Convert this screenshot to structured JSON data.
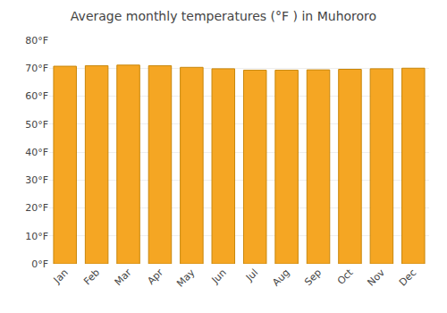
{
  "chart_data": {
    "type": "bar",
    "title": "Average monthly temperatures (°F ) in Muhororo",
    "categories": [
      "Jan",
      "Feb",
      "Mar",
      "Apr",
      "May",
      "Jun",
      "Jul",
      "Aug",
      "Sep",
      "Oct",
      "Nov",
      "Dec"
    ],
    "values": [
      70.7,
      70.9,
      71.1,
      70.9,
      70.3,
      69.8,
      69.3,
      69.3,
      69.4,
      69.6,
      69.8,
      70.0
    ],
    "color": "#F5A623",
    "ylim": [
      0,
      80
    ],
    "yticks": [
      {
        "value": 0,
        "label": "0°F"
      },
      {
        "value": 10,
        "label": "10°F"
      },
      {
        "value": 20,
        "label": "20°F"
      },
      {
        "value": 30,
        "label": "30°F"
      },
      {
        "value": 40,
        "label": "40°F"
      },
      {
        "value": 50,
        "label": "50°F"
      },
      {
        "value": 60,
        "label": "60°F"
      },
      {
        "value": 70,
        "label": "70°F"
      },
      {
        "value": 80,
        "label": "80°F"
      }
    ],
    "grid": true
  }
}
